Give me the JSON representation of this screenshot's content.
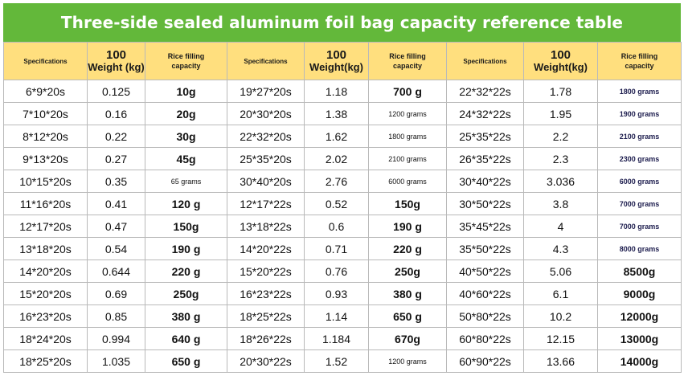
{
  "title": "Three-side sealed aluminum foil bag capacity reference table",
  "headers": {
    "spec": "Specifications",
    "weight_top": "100",
    "weight_bottom": "Weight (kg)",
    "weight_bottom_alt": "Weight(kg)",
    "cap_line1": "Rice filling",
    "cap_line2": "capacity"
  },
  "rows": [
    [
      "6*9*20s",
      "0.125",
      "10g",
      "19*27*20s",
      "1.18",
      "700 g",
      "22*32*22s",
      "1.78",
      "1800 grams"
    ],
    [
      "7*10*20s",
      "0.16",
      "20g",
      "20*30*20s",
      "1.38",
      "1200 grams",
      "24*32*22s",
      "1.95",
      "1900 grams"
    ],
    [
      "8*12*20s",
      "0.22",
      "30g",
      "22*32*20s",
      "1.62",
      "1800 grams",
      "25*35*22s",
      "2.2",
      "2100 grams"
    ],
    [
      "9*13*20s",
      "0.27",
      "45g",
      "25*35*20s",
      "2.02",
      "2100 grams",
      "26*35*22s",
      "2.3",
      "2300 grams"
    ],
    [
      "10*15*20s",
      "0.35",
      "65 grams",
      "30*40*20s",
      "2.76",
      "6000 grams",
      "30*40*22s",
      "3.036",
      "6000 grams"
    ],
    [
      "11*16*20s",
      "0.41",
      "120 g",
      "12*17*22s",
      "0.52",
      "150g",
      "30*50*22s",
      "3.8",
      "7000 grams"
    ],
    [
      "12*17*20s",
      "0.47",
      "150g",
      "13*18*22s",
      "0.6",
      "190 g",
      "35*45*22s",
      "4",
      "7000 grams"
    ],
    [
      "13*18*20s",
      "0.54",
      "190 g",
      "14*20*22s",
      "0.71",
      "220 g",
      "35*50*22s",
      "4.3",
      "8000 grams"
    ],
    [
      "14*20*20s",
      "0.644",
      "220 g",
      "15*20*22s",
      "0.76",
      "250g",
      "40*50*22s",
      "5.06",
      "8500g"
    ],
    [
      "15*20*20s",
      "0.69",
      "250g",
      "16*23*22s",
      "0.93",
      "380 g",
      "40*60*22s",
      "6.1",
      "9000g"
    ],
    [
      "16*23*20s",
      "0.85",
      "380 g",
      "18*25*22s",
      "1.14",
      "650 g",
      "50*80*22s",
      "10.2",
      "12000g"
    ],
    [
      "18*24*20s",
      "0.994",
      "640 g",
      "18*26*22s",
      "1.184",
      "670g",
      "60*80*22s",
      "12.15",
      "13000g"
    ],
    [
      "18*25*20s",
      "1.035",
      "650 g",
      "20*30*22s",
      "1.52",
      "1200 grams",
      "60*90*22s",
      "13.66",
      "14000g"
    ]
  ],
  "small_caps": {
    "grams_style": "small"
  },
  "colors": {
    "title_bg": "#63b83a",
    "header_bg": "#ffdf7e",
    "border": "#b9b9b9"
  }
}
